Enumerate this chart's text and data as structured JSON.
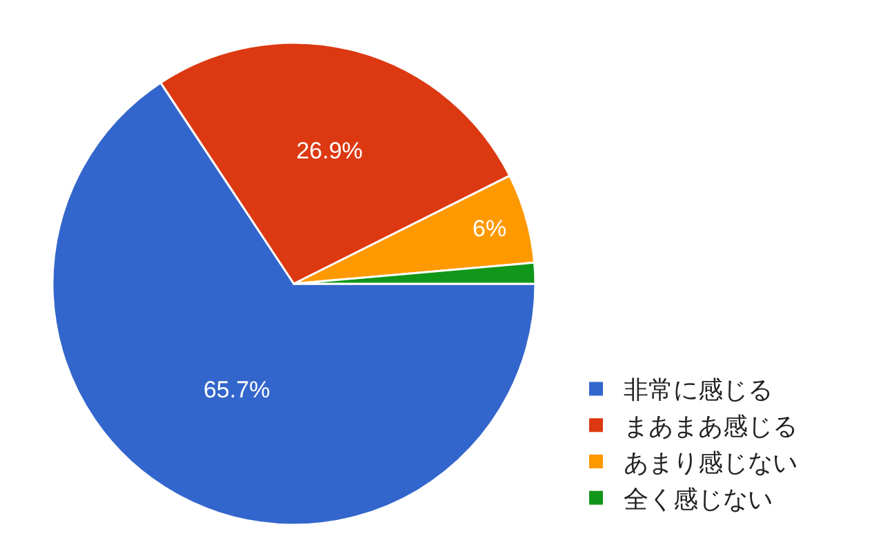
{
  "chart_data": {
    "type": "pie",
    "categories": [
      "非常に感じる",
      "まあまあ感じる",
      "あまり感じない",
      "全く感じない"
    ],
    "values": [
      65.7,
      26.9,
      6,
      1.4
    ],
    "colors": [
      "#3366cc",
      "#dc3912",
      "#ff9900",
      "#109618"
    ],
    "value_labels": [
      "65.7%",
      "26.9%",
      "6%",
      null
    ],
    "legend": "bottom right"
  }
}
